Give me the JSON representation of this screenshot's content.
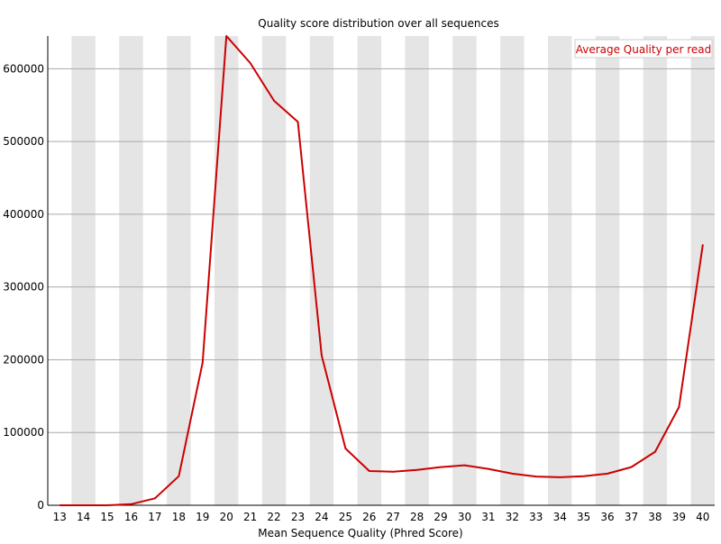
{
  "chart_data": {
    "type": "line",
    "title": "Quality score distribution over all sequences",
    "xlabel": "Mean Sequence Quality (Phred Score)",
    "ylabel": "",
    "x": [
      13,
      14,
      15,
      16,
      17,
      18,
      19,
      20,
      21,
      22,
      23,
      24,
      25,
      26,
      27,
      28,
      29,
      30,
      31,
      32,
      33,
      34,
      35,
      36,
      37,
      38,
      39,
      40
    ],
    "series": [
      {
        "name": "Average Quality per read",
        "color": "#cc0000",
        "values": [
          0,
          0,
          0,
          1500,
          9500,
          40000,
          196000,
          645000,
          608000,
          556000,
          527000,
          206000,
          78000,
          47000,
          46000,
          48500,
          52500,
          55000,
          50000,
          43500,
          39500,
          38500,
          40000,
          43500,
          52500,
          73500,
          135000,
          358000
        ]
      }
    ],
    "yticks": [
      0,
      100000,
      200000,
      300000,
      400000,
      500000,
      600000
    ],
    "ylim": [
      0,
      645000
    ],
    "xlim": [
      13,
      40
    ],
    "grid": true,
    "band_color": "#e5e5e5",
    "grid_color": "#aaaaaa",
    "legend_position": "top-right"
  }
}
